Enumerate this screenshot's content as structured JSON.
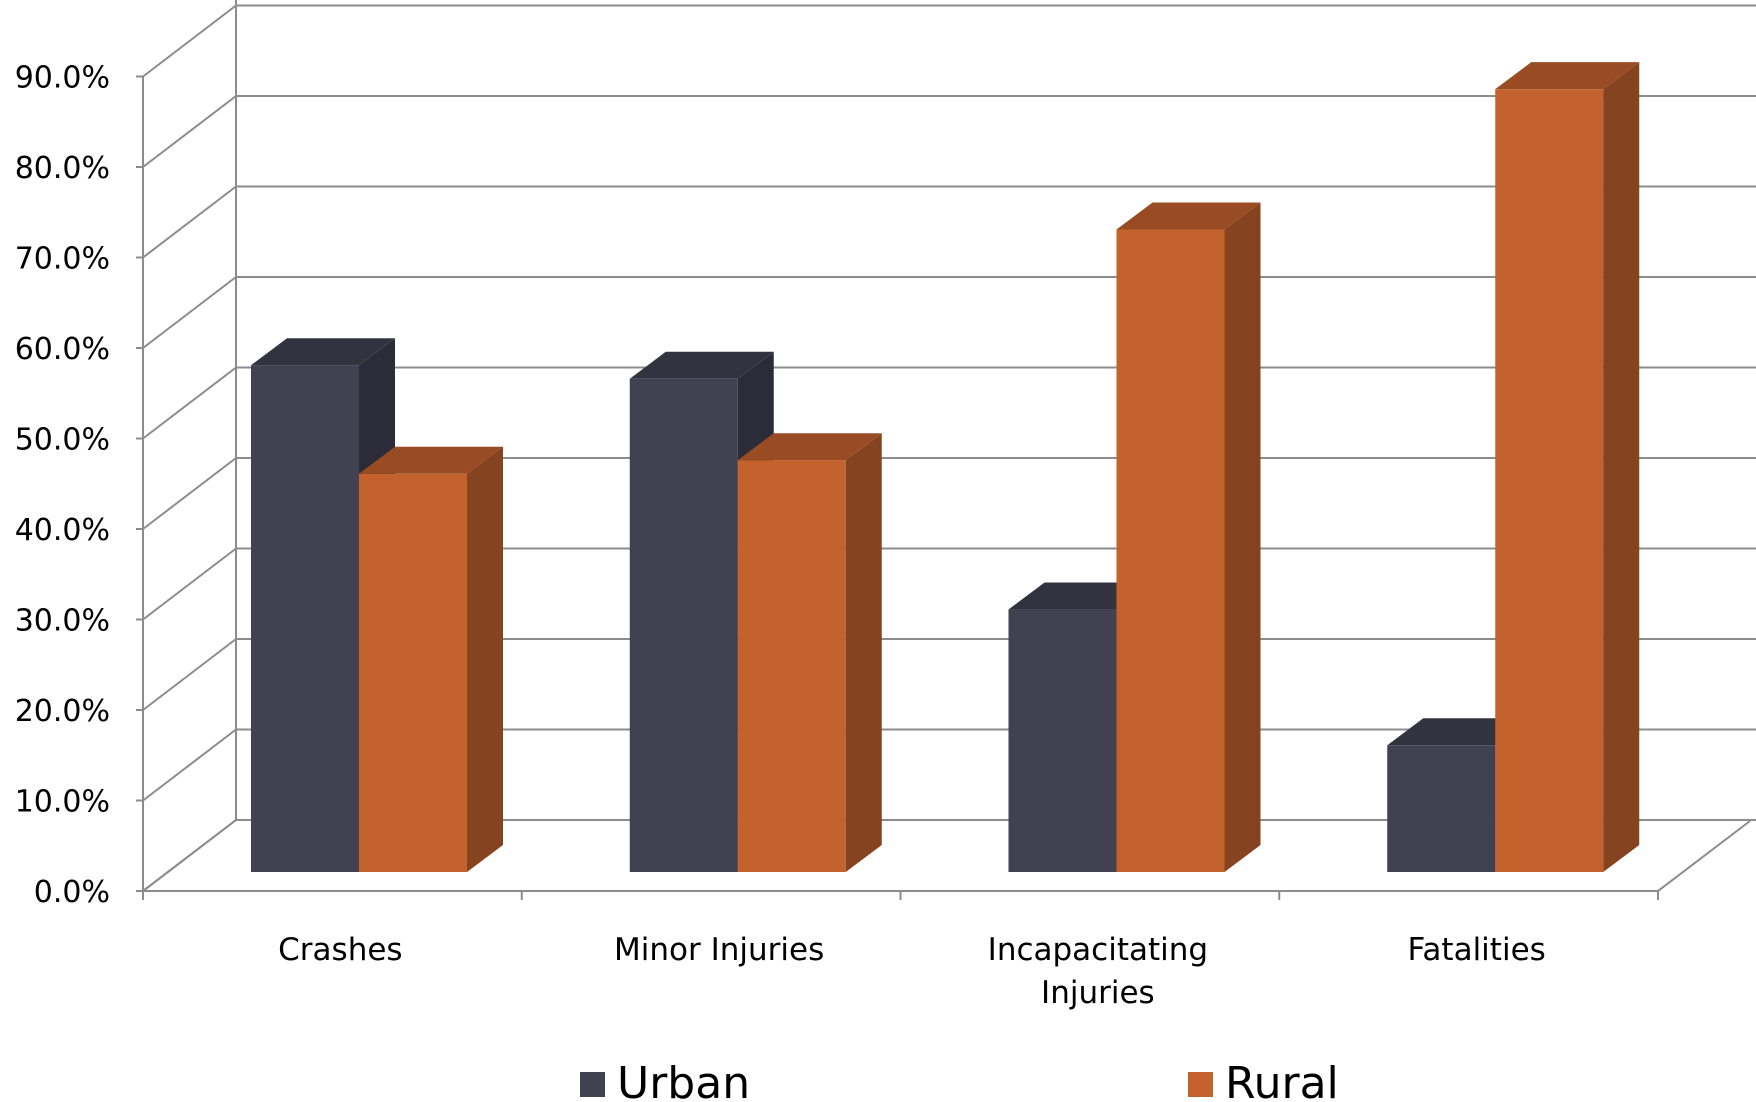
{
  "chart_data": {
    "type": "bar",
    "subtype": "3d-clustered-column",
    "categories": [
      "Crashes",
      "Minor Injuries",
      [
        "Incapacitating",
        "Injuries"
      ],
      "Fatalities"
    ],
    "series": [
      {
        "name": "Urban",
        "values": [
          56.0,
          54.5,
          29.0,
          14.0
        ],
        "color": "#414152"
      },
      {
        "name": "Rural",
        "values": [
          44.0,
          45.5,
          71.0,
          86.5
        ],
        "color": "#C4622D"
      }
    ],
    "y_ticks": [
      "0.0%",
      "10.0%",
      "20.0%",
      "30.0%",
      "40.0%",
      "50.0%",
      "60.0%",
      "70.0%",
      "80.0%",
      "90.0%"
    ],
    "ylim": [
      0,
      90
    ],
    "grid": true,
    "legend_position": "bottom"
  }
}
